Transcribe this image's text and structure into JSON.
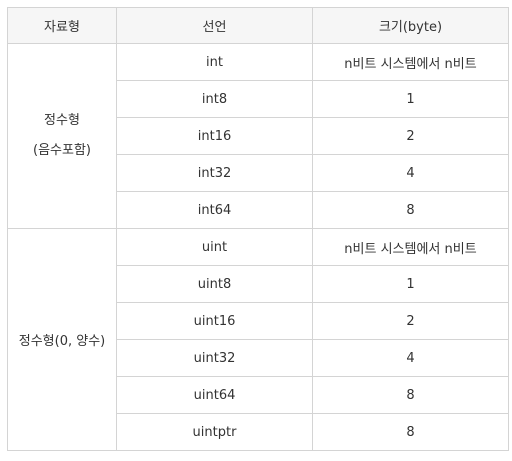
{
  "header": {
    "col1": "자료형",
    "col2": "선언",
    "col3": "크기(byte)"
  },
  "groups": [
    {
      "label_line1": "정수형",
      "label_line2": "(음수포함)",
      "rows": [
        {
          "decl": "int",
          "size": "n비트 시스템에서 n비트"
        },
        {
          "decl": "int8",
          "size": "1"
        },
        {
          "decl": "int16",
          "size": "2"
        },
        {
          "decl": "int32",
          "size": "4"
        },
        {
          "decl": "int64",
          "size": "8"
        }
      ]
    },
    {
      "label_line1": "정수형(0, 양수)",
      "rows": [
        {
          "decl": "uint",
          "size": "n비트 시스템에서 n비트"
        },
        {
          "decl": "uint8",
          "size": "1"
        },
        {
          "decl": "uint16",
          "size": "2"
        },
        {
          "decl": "uint32",
          "size": "4"
        },
        {
          "decl": "uint64",
          "size": "8"
        },
        {
          "decl": "uintptr",
          "size": "8"
        }
      ]
    }
  ]
}
